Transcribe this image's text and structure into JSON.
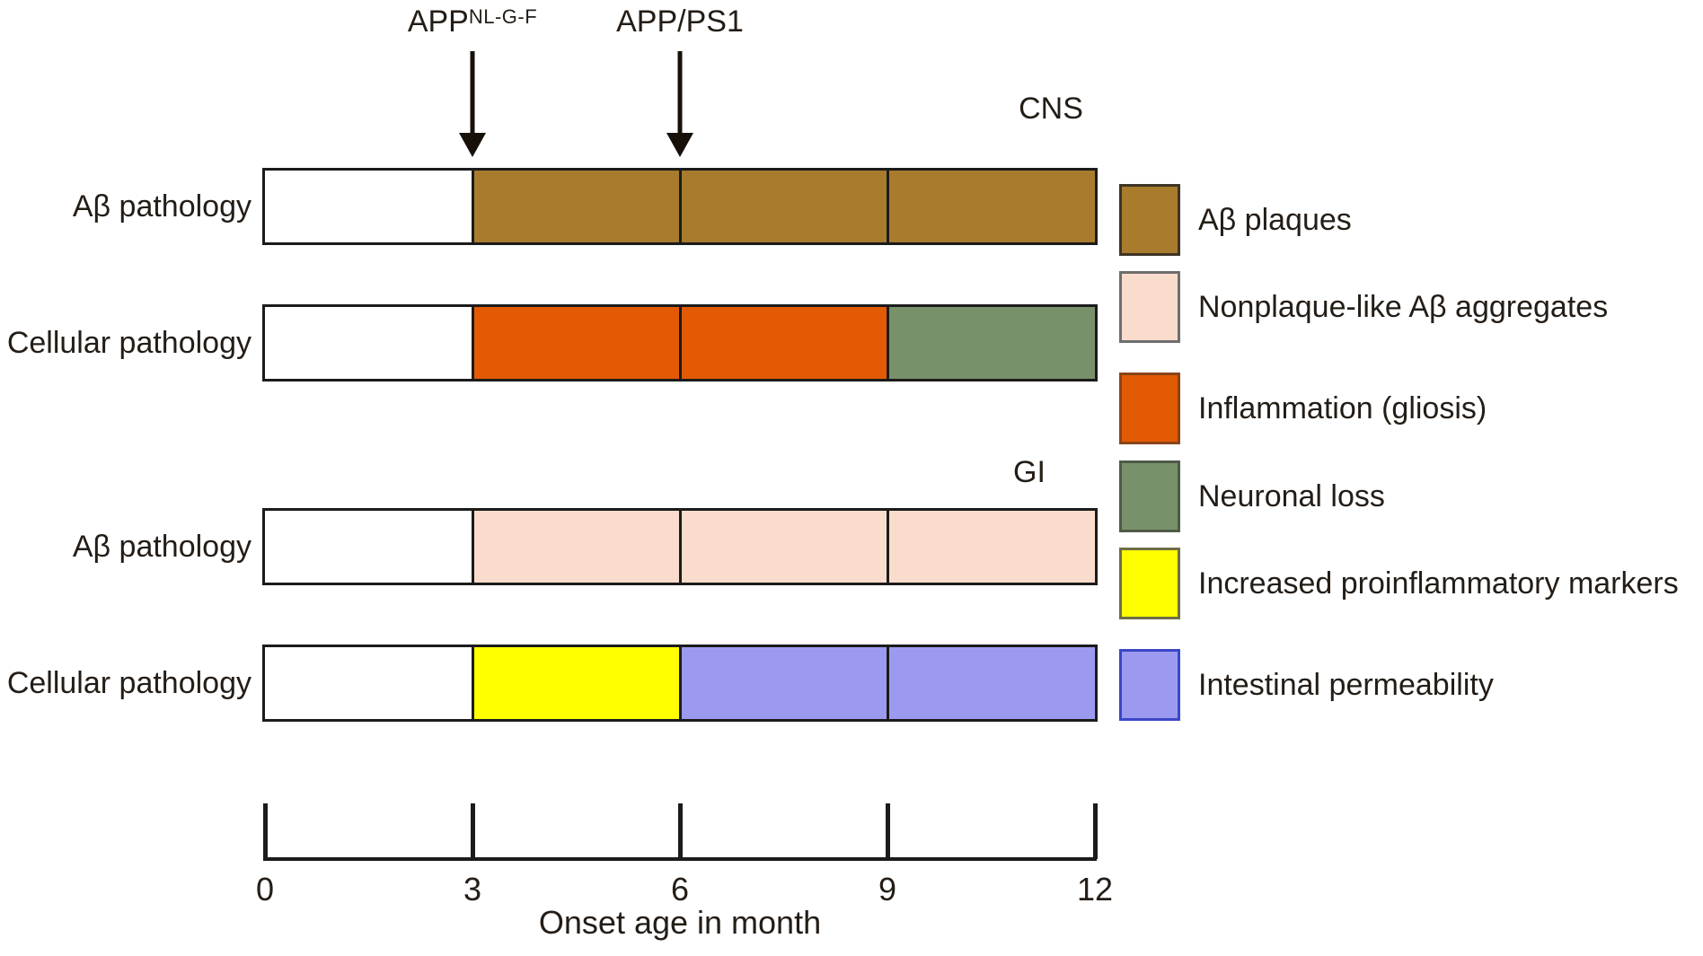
{
  "chart_data": {
    "type": "bar",
    "variant": "horizontal-timeline",
    "xlabel": "Onset age in month",
    "xlim": [
      0,
      12
    ],
    "x_ticks": [
      "0",
      "3",
      "6",
      "9",
      "12"
    ],
    "x_tick_values": [
      0,
      3,
      6,
      9,
      12
    ],
    "grid_step_months": 3,
    "annotations": [
      {
        "base": "APP",
        "superscript": "NL-G-F",
        "x_month": 3
      },
      {
        "base": "APP/PS1",
        "superscript": "",
        "x_month": 6
      }
    ],
    "legend_position": "right",
    "legend": [
      {
        "label": "Aβ plaques",
        "color": "#A87C2C",
        "border": "#3e3425"
      },
      {
        "label": "Nonplaque-like Aβ aggregates",
        "color": "#FADCCC",
        "border": "#6e6e6e"
      },
      {
        "label": "Inflammation (gliosis)",
        "color": "#E25A04",
        "border": "#8a4418"
      },
      {
        "label": "Neuronal loss",
        "color": "#78916A",
        "border": "#4f5a48"
      },
      {
        "label": "Increased proinflammatory markers",
        "color": "#FFFF00",
        "border": "#6e6e46"
      },
      {
        "label": "Intestinal permeability",
        "color": "#9C9AF0",
        "border": "#3c47c8"
      }
    ],
    "sections": [
      {
        "label": "CNS",
        "rows": [
          {
            "label": "Aβ pathology",
            "cells": [
              {
                "from": 0,
                "to": 3,
                "state": "none",
                "color": "#FFFFFF"
              },
              {
                "from": 3,
                "to": 6,
                "state": "Aβ plaques",
                "color": "#A87C2C"
              },
              {
                "from": 6,
                "to": 9,
                "state": "Aβ plaques",
                "color": "#A87C2C"
              },
              {
                "from": 9,
                "to": 12,
                "state": "Aβ plaques",
                "color": "#A87C2C"
              }
            ]
          },
          {
            "label": "Cellular pathology",
            "cells": [
              {
                "from": 0,
                "to": 3,
                "state": "none",
                "color": "#FFFFFF"
              },
              {
                "from": 3,
                "to": 6,
                "state": "Inflammation (gliosis)",
                "color": "#E25A04"
              },
              {
                "from": 6,
                "to": 9,
                "state": "Inflammation (gliosis)",
                "color": "#E25A04"
              },
              {
                "from": 9,
                "to": 12,
                "state": "Neuronal loss",
                "color": "#78916A"
              }
            ]
          }
        ]
      },
      {
        "label": "GI",
        "rows": [
          {
            "label": "Aβ pathology",
            "cells": [
              {
                "from": 0,
                "to": 3,
                "state": "none",
                "color": "#FFFFFF"
              },
              {
                "from": 3,
                "to": 6,
                "state": "Nonplaque-like Aβ aggregates",
                "color": "#FADCCC"
              },
              {
                "from": 6,
                "to": 9,
                "state": "Nonplaque-like Aβ aggregates",
                "color": "#FADCCC"
              },
              {
                "from": 9,
                "to": 12,
                "state": "Nonplaque-like Aβ aggregates",
                "color": "#FADCCC"
              }
            ]
          },
          {
            "label": "Cellular pathology",
            "cells": [
              {
                "from": 0,
                "to": 3,
                "state": "none",
                "color": "#FFFFFF"
              },
              {
                "from": 3,
                "to": 6,
                "state": "Increased proinflammatory markers",
                "color": "#FFFF00"
              },
              {
                "from": 6,
                "to": 9,
                "state": "Intestinal permeability",
                "color": "#9C9AF0"
              },
              {
                "from": 9,
                "to": 12,
                "state": "Intestinal permeability",
                "color": "#9C9AF0"
              }
            ]
          }
        ]
      }
    ]
  }
}
